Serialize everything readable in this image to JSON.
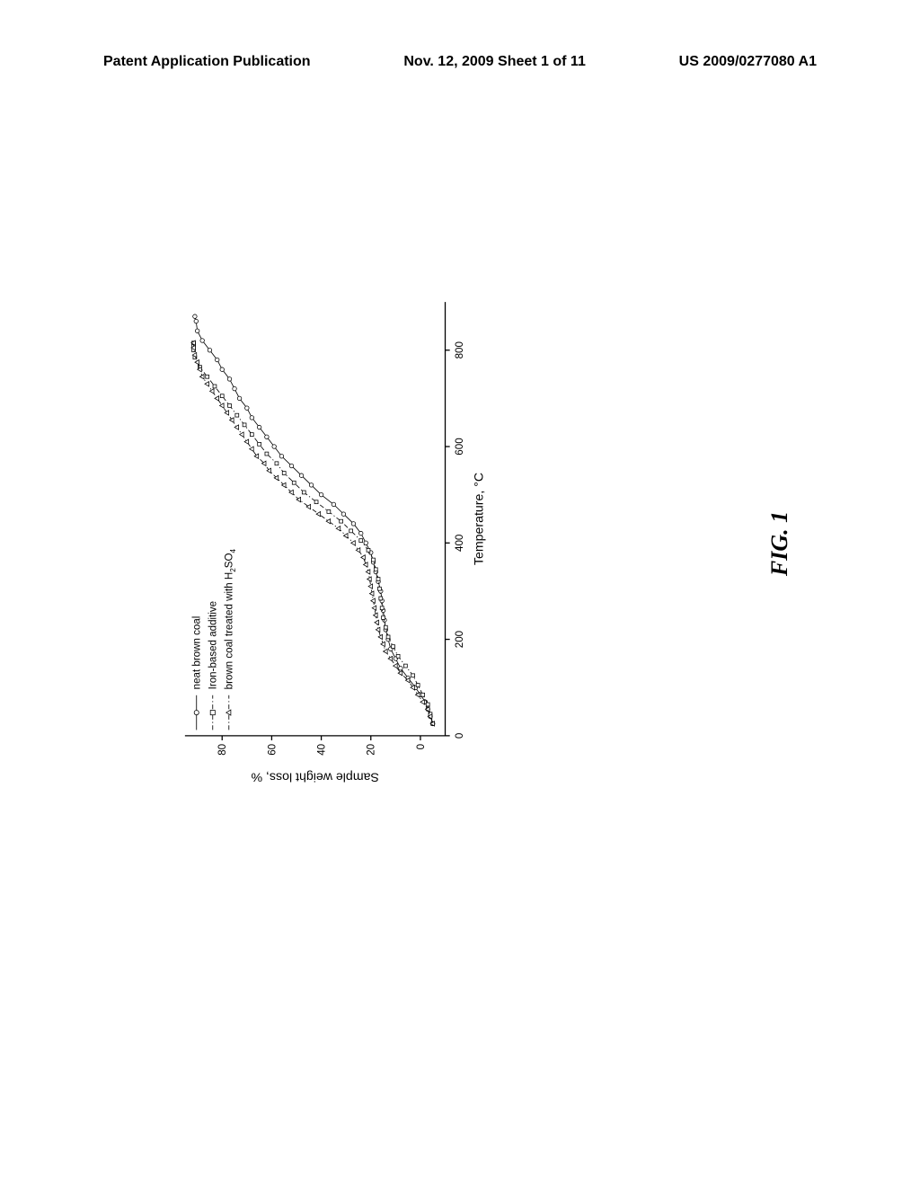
{
  "header": {
    "left": "Patent Application Publication",
    "center": "Nov. 12, 2009  Sheet 1 of 11",
    "right": "US 2009/0277080 A1"
  },
  "figure_label": "FIG. 1",
  "chart": {
    "type": "line",
    "xlabel": "Temperature, °C",
    "ylabel": "Sample weight loss, %",
    "label_fontsize": 22,
    "tick_fontsize": 18,
    "xlim": [
      0,
      900
    ],
    "ylim": [
      -10,
      95
    ],
    "xticks": [
      0,
      200,
      400,
      600,
      800
    ],
    "yticks": [
      0,
      20,
      40,
      60,
      80
    ],
    "background_color": "#ffffff",
    "axis_color": "#000000",
    "legend": {
      "position": "upper-left",
      "fontsize": 18,
      "items": [
        {
          "label": "neat brown coal",
          "marker": "circle",
          "line_style": "solid"
        },
        {
          "label": "Iron-based additive",
          "marker": "square",
          "line_style": "dashdot"
        },
        {
          "label": "brown coal treated with H₂SO₄",
          "marker": "triangle",
          "line_style": "dashdot"
        }
      ]
    },
    "series": [
      {
        "name": "neat brown coal",
        "marker": "circle",
        "line_style": "solid",
        "color": "#000000",
        "marker_size": 7,
        "data": [
          [
            25,
            -5
          ],
          [
            40,
            -4
          ],
          [
            55,
            -3
          ],
          [
            70,
            -2
          ],
          [
            85,
            0
          ],
          [
            100,
            2
          ],
          [
            120,
            5
          ],
          [
            140,
            8
          ],
          [
            160,
            10
          ],
          [
            180,
            12
          ],
          [
            200,
            13
          ],
          [
            220,
            14
          ],
          [
            240,
            14.5
          ],
          [
            260,
            15
          ],
          [
            280,
            15.5
          ],
          [
            300,
            16
          ],
          [
            320,
            17
          ],
          [
            340,
            18
          ],
          [
            360,
            19
          ],
          [
            380,
            20
          ],
          [
            400,
            22
          ],
          [
            420,
            24
          ],
          [
            440,
            27
          ],
          [
            460,
            31
          ],
          [
            480,
            35
          ],
          [
            500,
            40
          ],
          [
            520,
            44
          ],
          [
            540,
            48
          ],
          [
            560,
            52
          ],
          [
            580,
            56
          ],
          [
            600,
            59
          ],
          [
            620,
            62
          ],
          [
            640,
            65
          ],
          [
            660,
            68
          ],
          [
            680,
            70
          ],
          [
            700,
            73
          ],
          [
            720,
            75
          ],
          [
            740,
            77
          ],
          [
            760,
            80
          ],
          [
            780,
            82
          ],
          [
            800,
            85
          ],
          [
            820,
            88
          ],
          [
            840,
            90
          ],
          [
            860,
            90.5
          ],
          [
            870,
            91
          ]
        ]
      },
      {
        "name": "Iron-based additive",
        "marker": "square",
        "line_style": "dashdot",
        "color": "#000000",
        "marker_size": 6,
        "data": [
          [
            25,
            -5
          ],
          [
            45,
            -4
          ],
          [
            65,
            -3
          ],
          [
            85,
            -1
          ],
          [
            105,
            1
          ],
          [
            125,
            3
          ],
          [
            145,
            6
          ],
          [
            165,
            9
          ],
          [
            185,
            11
          ],
          [
            205,
            13
          ],
          [
            225,
            14
          ],
          [
            245,
            15
          ],
          [
            265,
            15.5
          ],
          [
            285,
            16
          ],
          [
            305,
            16.5
          ],
          [
            325,
            17
          ],
          [
            345,
            18
          ],
          [
            365,
            19
          ],
          [
            385,
            21
          ],
          [
            405,
            24
          ],
          [
            425,
            28
          ],
          [
            445,
            32
          ],
          [
            465,
            37
          ],
          [
            485,
            42
          ],
          [
            505,
            47
          ],
          [
            525,
            51
          ],
          [
            545,
            55
          ],
          [
            565,
            58
          ],
          [
            585,
            62
          ],
          [
            605,
            65
          ],
          [
            625,
            68
          ],
          [
            645,
            71
          ],
          [
            665,
            74
          ],
          [
            685,
            77
          ],
          [
            705,
            80
          ],
          [
            725,
            83
          ],
          [
            745,
            86
          ],
          [
            765,
            89
          ],
          [
            785,
            91
          ],
          [
            800,
            91.5
          ],
          [
            810,
            91.5
          ],
          [
            815,
            91.5
          ]
        ]
      },
      {
        "name": "brown coal treated with H2SO4",
        "marker": "triangle",
        "line_style": "dashdot",
        "color": "#000000",
        "marker_size": 7,
        "data": [
          [
            25,
            -5
          ],
          [
            40,
            -4
          ],
          [
            55,
            -3
          ],
          [
            70,
            -1
          ],
          [
            85,
            1
          ],
          [
            100,
            3
          ],
          [
            115,
            5
          ],
          [
            130,
            8
          ],
          [
            145,
            10
          ],
          [
            160,
            12
          ],
          [
            175,
            14
          ],
          [
            190,
            15
          ],
          [
            205,
            16
          ],
          [
            220,
            17
          ],
          [
            235,
            17.5
          ],
          [
            250,
            18
          ],
          [
            265,
            18.5
          ],
          [
            280,
            19
          ],
          [
            295,
            19.5
          ],
          [
            310,
            20
          ],
          [
            325,
            20.5
          ],
          [
            340,
            21
          ],
          [
            355,
            22
          ],
          [
            370,
            23
          ],
          [
            385,
            25
          ],
          [
            400,
            27
          ],
          [
            415,
            30
          ],
          [
            430,
            33
          ],
          [
            445,
            37
          ],
          [
            460,
            41
          ],
          [
            475,
            45
          ],
          [
            490,
            49
          ],
          [
            505,
            52
          ],
          [
            520,
            55
          ],
          [
            535,
            58
          ],
          [
            550,
            61
          ],
          [
            565,
            63
          ],
          [
            580,
            66
          ],
          [
            595,
            68
          ],
          [
            610,
            70
          ],
          [
            625,
            72
          ],
          [
            640,
            74
          ],
          [
            655,
            76
          ],
          [
            670,
            78
          ],
          [
            685,
            80
          ],
          [
            700,
            82
          ],
          [
            715,
            84
          ],
          [
            730,
            86
          ],
          [
            745,
            88
          ],
          [
            760,
            89
          ],
          [
            775,
            90
          ],
          [
            790,
            91
          ],
          [
            805,
            91.5
          ],
          [
            815,
            91.5
          ]
        ]
      }
    ]
  }
}
